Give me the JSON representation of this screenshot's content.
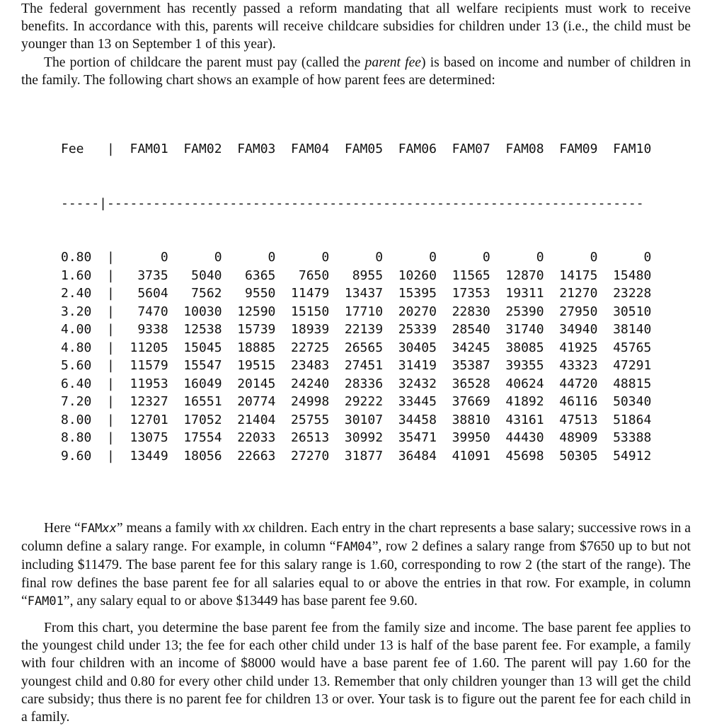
{
  "paragraphs": {
    "p1": "The federal government has recently passed a reform mandating that all welfare recipients must work to receive benefits. In accordance with this, parents will receive childcare subsidies for children under 13 (i.e., the child must be younger than 13 on September 1 of this year).",
    "p2a": "The portion of childcare the parent must pay (called the ",
    "p2em": "parent fee",
    "p2b": ") is based on income and number of children in the family. The following chart shows an example of how parent fees are determined:",
    "p3a": "Here “",
    "p3tt": "FAM",
    "p3ttx": "xx",
    "p3b": "” means a family with ",
    "p3x": "xx",
    "p3c": " children. Each entry in the chart represents a base salary; successive rows in a column define a salary range. For example, in column “",
    "p3col1": "FAM04",
    "p3d": "”, row 2 defines a salary range from $7650 up to but not including $11479. The base parent fee for this salary range is 1.60, corresponding to row 2 (the start of the range). The final row defines the base parent fee for all salaries equal to or above the entries in that row. For example, in column “",
    "p3col2": "FAM01",
    "p3e": "”, any salary equal to or above $13449 has base parent fee 9.60.",
    "p4": "From this chart, you determine the base parent fee from the family size and income. The base parent fee applies to the youngest child under 13; the fee for each other child under 13 is half of the base parent fee. For example, a family with four children with an income of $8000 would have a base parent fee of 1.60. The parent will pay 1.60 for the youngest child and 0.80 for every other child under 13. Remember that only children younger than 13 will get the child care subsidy; thus there is no parent fee for children 13 or over. Your task is to figure out the parent fee for each child in a family."
  },
  "fee_table": {
    "header_fee": "Fee",
    "header_sep": " |",
    "rule": "-----|----------------------------------------------------------------------",
    "row_sep": " |",
    "columns": [
      "FAM01",
      "FAM02",
      "FAM03",
      "FAM04",
      "FAM05",
      "FAM06",
      "FAM07",
      "FAM08",
      "FAM09",
      "FAM10"
    ],
    "rows": [
      {
        "fee": "0.80",
        "values": [
          "0",
          "0",
          "0",
          "0",
          "0",
          "0",
          "0",
          "0",
          "0",
          "0"
        ]
      },
      {
        "fee": "1.60",
        "values": [
          "3735",
          "5040",
          "6365",
          "7650",
          "8955",
          "10260",
          "11565",
          "12870",
          "14175",
          "15480"
        ]
      },
      {
        "fee": "2.40",
        "values": [
          "5604",
          "7562",
          "9550",
          "11479",
          "13437",
          "15395",
          "17353",
          "19311",
          "21270",
          "23228"
        ]
      },
      {
        "fee": "3.20",
        "values": [
          "7470",
          "10030",
          "12590",
          "15150",
          "17710",
          "20270",
          "22830",
          "25390",
          "27950",
          "30510"
        ]
      },
      {
        "fee": "4.00",
        "values": [
          "9338",
          "12538",
          "15739",
          "18939",
          "22139",
          "25339",
          "28540",
          "31740",
          "34940",
          "38140"
        ]
      },
      {
        "fee": "4.80",
        "values": [
          "11205",
          "15045",
          "18885",
          "22725",
          "26565",
          "30405",
          "34245",
          "38085",
          "41925",
          "45765"
        ]
      },
      {
        "fee": "5.60",
        "values": [
          "11579",
          "15547",
          "19515",
          "23483",
          "27451",
          "31419",
          "35387",
          "39355",
          "43323",
          "47291"
        ]
      },
      {
        "fee": "6.40",
        "values": [
          "11953",
          "16049",
          "20145",
          "24240",
          "28336",
          "32432",
          "36528",
          "40624",
          "44720",
          "48815"
        ]
      },
      {
        "fee": "7.20",
        "values": [
          "12327",
          "16551",
          "20774",
          "24998",
          "29222",
          "33445",
          "37669",
          "41892",
          "46116",
          "50340"
        ]
      },
      {
        "fee": "8.00",
        "values": [
          "12701",
          "17052",
          "21404",
          "25755",
          "30107",
          "34458",
          "38810",
          "43161",
          "47513",
          "51864"
        ]
      },
      {
        "fee": "8.80",
        "values": [
          "13075",
          "17554",
          "22033",
          "26513",
          "30992",
          "35471",
          "39950",
          "44430",
          "48909",
          "53388"
        ]
      },
      {
        "fee": "9.60",
        "values": [
          "13449",
          "18056",
          "22663",
          "27270",
          "31877",
          "36484",
          "41091",
          "45698",
          "50305",
          "54912"
        ]
      }
    ]
  }
}
